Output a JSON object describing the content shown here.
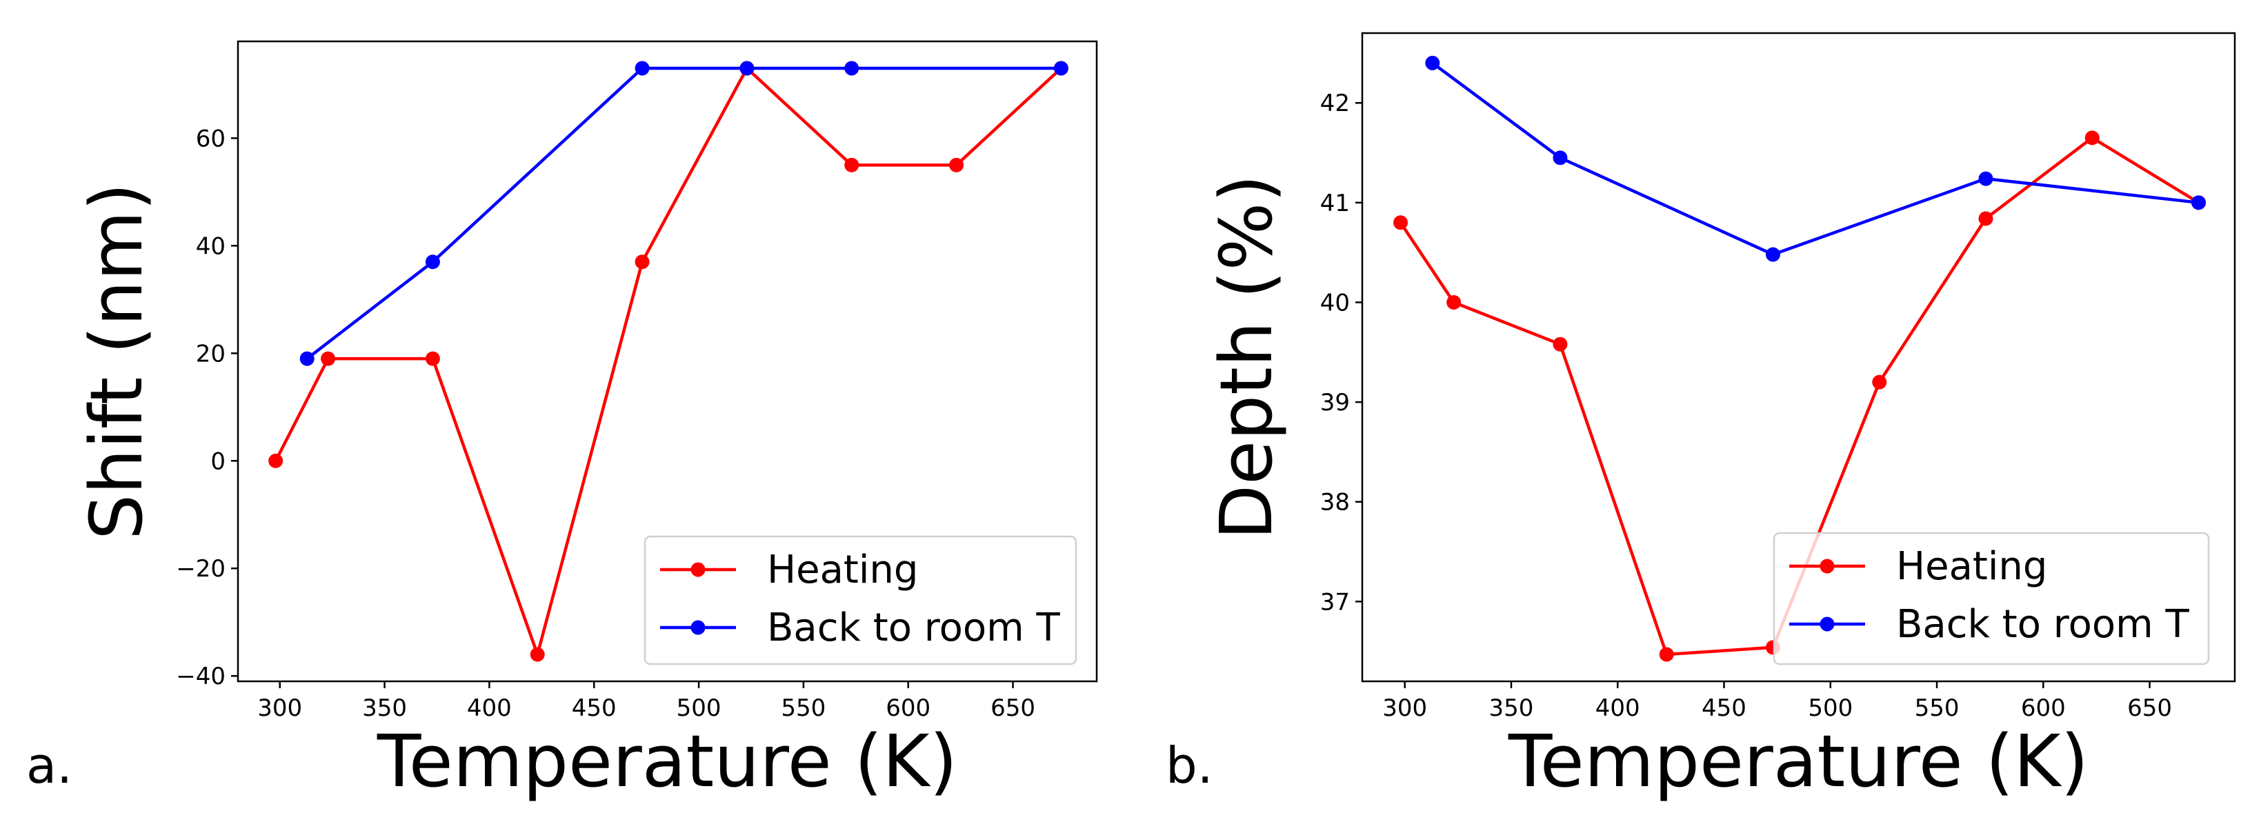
{
  "panel_labels": [
    "a.",
    "b."
  ],
  "chart_data": [
    {
      "type": "line",
      "panel": "a.",
      "xlabel": "Temperature (K)",
      "ylabel": "Shift (nm)",
      "xlim": [
        280,
        690
      ],
      "ylim": [
        -41,
        78
      ],
      "xticks": [
        300,
        350,
        400,
        450,
        500,
        550,
        600,
        650
      ],
      "yticks": [
        -40,
        -20,
        0,
        20,
        40,
        60
      ],
      "ytick_labels": [
        "−40",
        "−20",
        "0",
        "20",
        "40",
        "60"
      ],
      "legend_position": "lower-right",
      "series": [
        {
          "name": "Heating",
          "color": "#ff0000",
          "x": [
            298,
            323,
            373,
            423,
            473,
            523,
            573,
            623,
            673
          ],
          "y": [
            0,
            19,
            19,
            -36,
            37,
            73,
            55,
            55,
            73
          ]
        },
        {
          "name": "Back to room T",
          "color": "#0000ff",
          "x": [
            313,
            373,
            473,
            523,
            573,
            673
          ],
          "y": [
            19,
            37,
            73,
            73,
            73,
            73
          ]
        }
      ]
    },
    {
      "type": "line",
      "panel": "b.",
      "xlabel": "Temperature (K)",
      "ylabel": "Depth (%)",
      "xlim": [
        280,
        690
      ],
      "ylim": [
        36.2,
        42.7
      ],
      "xticks": [
        300,
        350,
        400,
        450,
        500,
        550,
        600,
        650
      ],
      "yticks": [
        37,
        38,
        39,
        40,
        41,
        42
      ],
      "ytick_labels": [
        "37",
        "38",
        "39",
        "40",
        "41",
        "42"
      ],
      "legend_position": "lower-right",
      "series": [
        {
          "name": "Heating",
          "color": "#ff0000",
          "x": [
            298,
            323,
            373,
            423,
            473,
            523,
            573,
            623,
            673
          ],
          "y": [
            40.8,
            40.0,
            39.58,
            36.47,
            36.54,
            39.2,
            40.84,
            41.65,
            41.0
          ]
        },
        {
          "name": "Back to room T",
          "color": "#0000ff",
          "x": [
            313,
            373,
            473,
            573,
            673
          ],
          "y": [
            42.4,
            41.45,
            40.48,
            41.24,
            41.0
          ]
        }
      ]
    }
  ]
}
